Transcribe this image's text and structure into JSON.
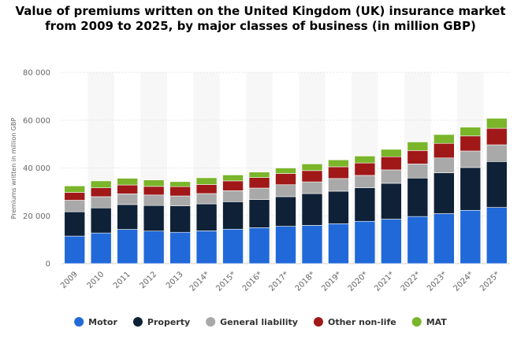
{
  "chart_data": {
    "type": "bar",
    "stacked": true,
    "title": "Value of premiums written on the United Kingdom (UK) insurance market from 2009 to 2025, by major classes of business (in million GBP)",
    "xlabel": "",
    "ylabel": "Premiums written in million GBP",
    "ylim": [
      0,
      80000
    ],
    "yticks": [
      0,
      20000,
      40000,
      60000,
      80000
    ],
    "ytick_labels": [
      "0",
      "20 000",
      "40 000",
      "60 000",
      "80 000"
    ],
    "grid": true,
    "legend_position": "bottom",
    "categories": [
      "2009",
      "2010",
      "2011",
      "2012",
      "2013",
      "2014*",
      "2015*",
      "2016*",
      "2017*",
      "2018*",
      "2019*",
      "2020*",
      "2021*",
      "2022*",
      "2023*",
      "2024*",
      "2025*"
    ],
    "series": [
      {
        "name": "Motor",
        "color": "#2169d9",
        "values": [
          11500,
          12800,
          14300,
          13600,
          13100,
          13700,
          14400,
          15000,
          15600,
          16000,
          16700,
          17700,
          18600,
          19700,
          20900,
          22300,
          23500
        ]
      },
      {
        "name": "Property",
        "color": "#0f2137",
        "values": [
          10200,
          10500,
          10400,
          10700,
          11100,
          11300,
          11500,
          11800,
          12400,
          13300,
          13600,
          14000,
          15000,
          16100,
          17100,
          17900,
          19200
        ]
      },
      {
        "name": "General liability",
        "color": "#a9a9a9",
        "values": [
          4800,
          4700,
          4500,
          4400,
          4100,
          4300,
          4600,
          4800,
          5000,
          4900,
          5300,
          5200,
          5600,
          5900,
          6200,
          6900,
          7000
        ]
      },
      {
        "name": "Other non-life",
        "color": "#a01818",
        "values": [
          3300,
          3700,
          3700,
          3600,
          3900,
          3800,
          4100,
          4400,
          4700,
          4700,
          4900,
          5200,
          5500,
          5600,
          6100,
          6300,
          6900
        ]
      },
      {
        "name": "MAT",
        "color": "#7ab52a",
        "values": [
          2700,
          2900,
          2800,
          2700,
          2100,
          2800,
          2500,
          2300,
          2300,
          2800,
          2900,
          2900,
          3100,
          3600,
          3700,
          3700,
          4200
        ]
      }
    ]
  }
}
